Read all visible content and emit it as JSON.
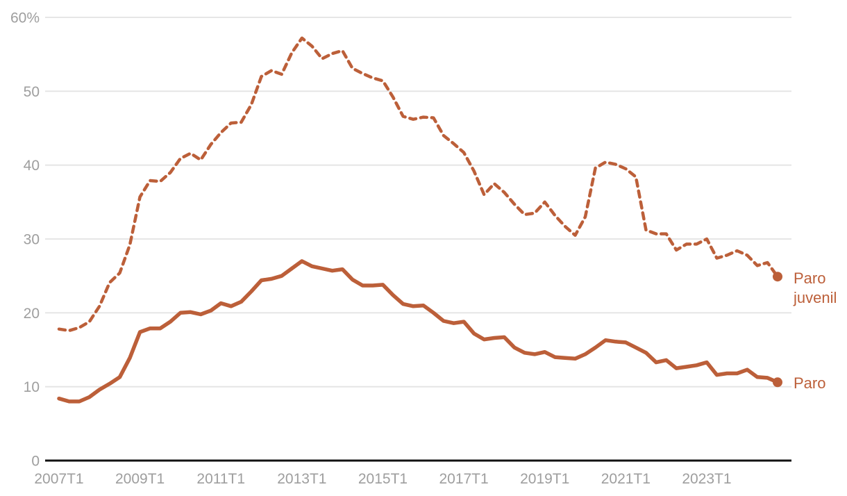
{
  "style": {
    "accent_color": "#bc5f39",
    "grid_color": "#e3e3e3",
    "axis_color": "#111111",
    "label_color": "#9e9e9e",
    "background": "#ffffff"
  },
  "chart_data": {
    "type": "line",
    "title": "",
    "grid": "horizontal",
    "legend_position": "right-of-line-ends",
    "x_axis": {
      "tick_labels": [
        "2007T1",
        "2009T1",
        "2011T1",
        "2013T1",
        "2015T1",
        "2017T1",
        "2019T1",
        "2021T1",
        "2023T1"
      ],
      "tick_indices": [
        0,
        8,
        16,
        24,
        32,
        40,
        48,
        56,
        64
      ]
    },
    "y_axis": {
      "ticks": [
        0,
        10,
        20,
        30,
        40,
        50,
        60
      ],
      "tick_labels": [
        "0",
        "10",
        "20",
        "30",
        "40",
        "50",
        "60%"
      ],
      "ylim": [
        0,
        60
      ]
    },
    "categories": [
      "2007T1",
      "2007T2",
      "2007T3",
      "2007T4",
      "2008T1",
      "2008T2",
      "2008T3",
      "2008T4",
      "2009T1",
      "2009T2",
      "2009T3",
      "2009T4",
      "2010T1",
      "2010T2",
      "2010T3",
      "2010T4",
      "2011T1",
      "2011T2",
      "2011T3",
      "2011T4",
      "2012T1",
      "2012T2",
      "2012T3",
      "2012T4",
      "2013T1",
      "2013T2",
      "2013T3",
      "2013T4",
      "2014T1",
      "2014T2",
      "2014T3",
      "2014T4",
      "2015T1",
      "2015T2",
      "2015T3",
      "2015T4",
      "2016T1",
      "2016T2",
      "2016T3",
      "2016T4",
      "2017T1",
      "2017T2",
      "2017T3",
      "2017T4",
      "2018T1",
      "2018T2",
      "2018T3",
      "2018T4",
      "2019T1",
      "2019T2",
      "2019T3",
      "2019T4",
      "2020T1",
      "2020T2",
      "2020T3",
      "2020T4",
      "2021T1",
      "2021T2",
      "2021T3",
      "2021T4",
      "2022T1",
      "2022T2",
      "2022T3",
      "2022T4",
      "2023T1",
      "2023T2",
      "2023T3",
      "2023T4",
      "2024T1",
      "2024T2",
      "2024T3",
      "2024T4"
    ],
    "series": [
      {
        "name": "Paro juvenil",
        "line_style": "dashed",
        "color": "#bc5f39",
        "values": [
          17.8,
          17.6,
          18.0,
          18.8,
          20.9,
          24.1,
          25.4,
          29.2,
          35.7,
          37.9,
          37.8,
          39.0,
          40.9,
          41.6,
          40.7,
          42.8,
          44.4,
          45.7,
          45.8,
          48.2,
          52.0,
          52.8,
          52.3,
          55.2,
          57.2,
          56.1,
          54.4,
          55.1,
          55.5,
          53.1,
          52.4,
          51.8,
          51.4,
          49.2,
          46.6,
          46.2,
          46.5,
          46.4,
          44.0,
          42.9,
          41.7,
          39.2,
          36.0,
          37.5,
          36.3,
          34.7,
          33.3,
          33.5,
          35.0,
          33.2,
          31.7,
          30.5,
          33.0,
          39.6,
          40.4,
          40.1,
          39.5,
          38.4,
          31.2,
          30.7,
          30.7,
          28.5,
          29.3,
          29.3,
          30.0,
          27.4,
          27.8,
          28.4,
          27.8,
          26.4,
          26.8,
          24.9
        ]
      },
      {
        "name": "Paro",
        "line_style": "solid",
        "color": "#bc5f39",
        "values": [
          8.4,
          8.0,
          8.0,
          8.6,
          9.6,
          10.4,
          11.3,
          13.9,
          17.4,
          17.9,
          17.9,
          18.8,
          20.0,
          20.1,
          19.8,
          20.3,
          21.3,
          20.9,
          21.5,
          22.9,
          24.4,
          24.6,
          25.0,
          26.0,
          27.0,
          26.3,
          26.0,
          25.7,
          25.9,
          24.5,
          23.7,
          23.7,
          23.8,
          22.4,
          21.2,
          20.9,
          21.0,
          20.0,
          18.9,
          18.6,
          18.8,
          17.2,
          16.4,
          16.6,
          16.7,
          15.3,
          14.6,
          14.4,
          14.7,
          14.0,
          13.9,
          13.8,
          14.4,
          15.3,
          16.3,
          16.1,
          16.0,
          15.3,
          14.6,
          13.3,
          13.6,
          12.5,
          12.7,
          12.9,
          13.3,
          11.6,
          11.8,
          11.8,
          12.3,
          11.3,
          11.2,
          10.6
        ]
      }
    ]
  }
}
